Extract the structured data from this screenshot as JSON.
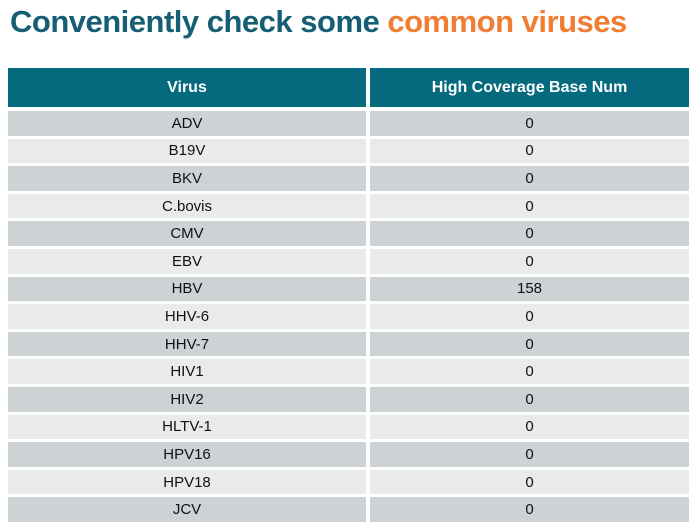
{
  "title": {
    "prefix": "Conveniently check some ",
    "highlight": "common viruses"
  },
  "colors": {
    "title_teal": "#155e74",
    "accent_orange": "#ef7d33",
    "header_teal": "#056a7e",
    "row_dark": "#cdd2d5",
    "row_light": "#e8eaeb"
  },
  "table": {
    "columns": [
      {
        "label": "Virus"
      },
      {
        "label": "High Coverage Base Num"
      }
    ],
    "rows": [
      {
        "virus": "ADV",
        "value": "0"
      },
      {
        "virus": "B19V",
        "value": "0"
      },
      {
        "virus": "BKV",
        "value": "0"
      },
      {
        "virus": "C.bovis",
        "value": "0"
      },
      {
        "virus": "CMV",
        "value": "0"
      },
      {
        "virus": "EBV",
        "value": "0"
      },
      {
        "virus": "HBV",
        "value": "158"
      },
      {
        "virus": "HHV-6",
        "value": "0"
      },
      {
        "virus": "HHV-7",
        "value": "0"
      },
      {
        "virus": "HIV1",
        "value": "0"
      },
      {
        "virus": "HIV2",
        "value": "0"
      },
      {
        "virus": "HLTV-1",
        "value": "0"
      },
      {
        "virus": "HPV16",
        "value": "0"
      },
      {
        "virus": "HPV18",
        "value": "0"
      },
      {
        "virus": "JCV",
        "value": "0"
      }
    ]
  }
}
